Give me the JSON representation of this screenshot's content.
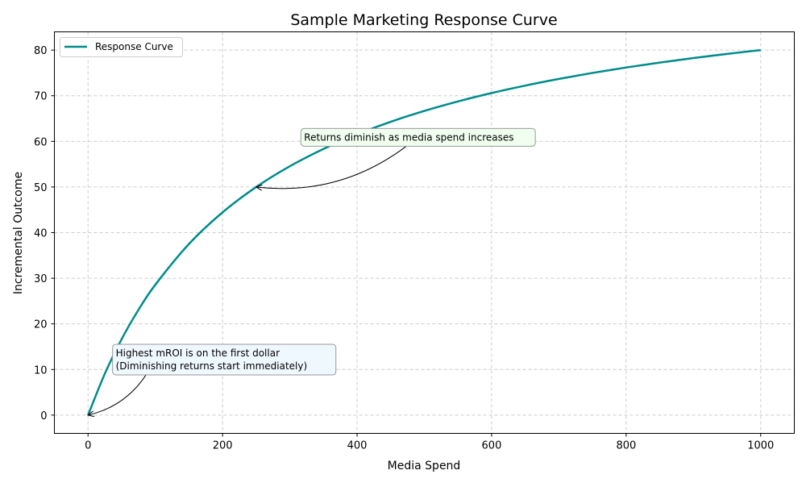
{
  "chart_data": {
    "type": "line",
    "title": "Sample Marketing Response Curve",
    "xlabel": "Media Spend",
    "ylabel": "Incremental Outcome",
    "xlim": [
      -50,
      1050
    ],
    "ylim": [
      -4,
      84
    ],
    "xticks": [
      0,
      200,
      400,
      600,
      800,
      1000
    ],
    "yticks": [
      0,
      10,
      20,
      30,
      40,
      50,
      60,
      70,
      80
    ],
    "grid": true,
    "legend_placement": "top-left",
    "series": [
      {
        "name": "Response Curve",
        "color": "#008b8b",
        "x": [
          0,
          25,
          50,
          75,
          100,
          150,
          200,
          250,
          300,
          350,
          400,
          450,
          500,
          550,
          600,
          650,
          700,
          750,
          800,
          850,
          900,
          950,
          1000
        ],
        "y": [
          0,
          9.09,
          16.67,
          23.08,
          28.57,
          37.5,
          44.44,
          50,
          54.55,
          58.33,
          61.54,
          64.29,
          66.67,
          68.75,
          70.59,
          72.22,
          73.68,
          75,
          76.19,
          77.27,
          78.26,
          79.17,
          80
        ]
      }
    ],
    "annotations": [
      {
        "lines": [
          "Returns diminish as media spend increases"
        ],
        "xy": [
          250,
          50
        ],
        "xytext": [
          320,
          60
        ],
        "box_color": "#f0fff0"
      },
      {
        "lines": [
          "Highest mROI is on the first dollar",
          "(Diminishing returns start immediately)"
        ],
        "xy": [
          0,
          0
        ],
        "xytext": [
          40,
          12
        ],
        "box_color": "#f0f8ff"
      }
    ]
  }
}
